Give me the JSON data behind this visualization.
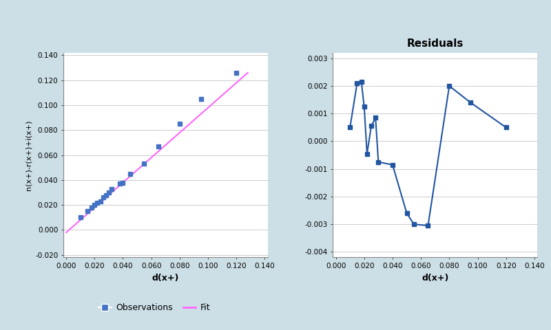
{
  "background_color": "#ccdfe6",
  "left_plot": {
    "title": "",
    "xlabel": "d(x+)",
    "ylabel": "n(x+)-r(x+)+i(x+)",
    "obs_x": [
      0.01,
      0.015,
      0.018,
      0.02,
      0.022,
      0.024,
      0.026,
      0.028,
      0.03,
      0.032,
      0.038,
      0.04,
      0.045,
      0.055,
      0.065,
      0.08,
      0.095,
      0.12
    ],
    "obs_y": [
      0.01,
      0.015,
      0.018,
      0.02,
      0.022,
      0.023,
      0.026,
      0.028,
      0.03,
      0.033,
      0.037,
      0.038,
      0.045,
      0.053,
      0.067,
      0.085,
      0.105,
      0.126
    ],
    "fit_x": [
      0.0,
      0.128
    ],
    "fit_y": [
      -0.002,
      0.126
    ],
    "obs_color": "#4472c4",
    "fit_color": "#ff66ff",
    "xlim": [
      -0.002,
      0.142
    ],
    "ylim": [
      -0.022,
      0.142
    ],
    "xticks": [
      0.0,
      0.02,
      0.04,
      0.06,
      0.08,
      0.1,
      0.12,
      0.14
    ],
    "yticks": [
      -0.02,
      0.0,
      0.02,
      0.04,
      0.06,
      0.08,
      0.1,
      0.12,
      0.14
    ]
  },
  "right_plot": {
    "title": "Residuals",
    "xlabel": "d(x+)",
    "ylabel": "",
    "res_x": [
      0.01,
      0.015,
      0.018,
      0.02,
      0.022,
      0.025,
      0.028,
      0.03,
      0.04,
      0.05,
      0.055,
      0.065,
      0.08,
      0.095,
      0.12
    ],
    "res_y": [
      0.0005,
      0.0021,
      0.00215,
      0.00125,
      -0.00045,
      0.00055,
      0.00085,
      -0.00075,
      -0.00085,
      -0.0026,
      -0.003,
      -0.00305,
      0.002,
      0.0014,
      0.0005
    ],
    "line_color": "#2255a0",
    "xlim": [
      -0.002,
      0.142
    ],
    "ylim": [
      -0.0042,
      0.0032
    ],
    "xticks": [
      0.0,
      0.02,
      0.04,
      0.06,
      0.08,
      0.1,
      0.12,
      0.14
    ],
    "yticks": [
      -0.004,
      -0.003,
      -0.002,
      -0.001,
      0.0,
      0.001,
      0.002,
      0.003
    ]
  },
  "legend": {
    "obs_label": "Observations",
    "fit_label": "Fit",
    "obs_color": "#4472c4",
    "fit_color": "#ff66ff"
  }
}
